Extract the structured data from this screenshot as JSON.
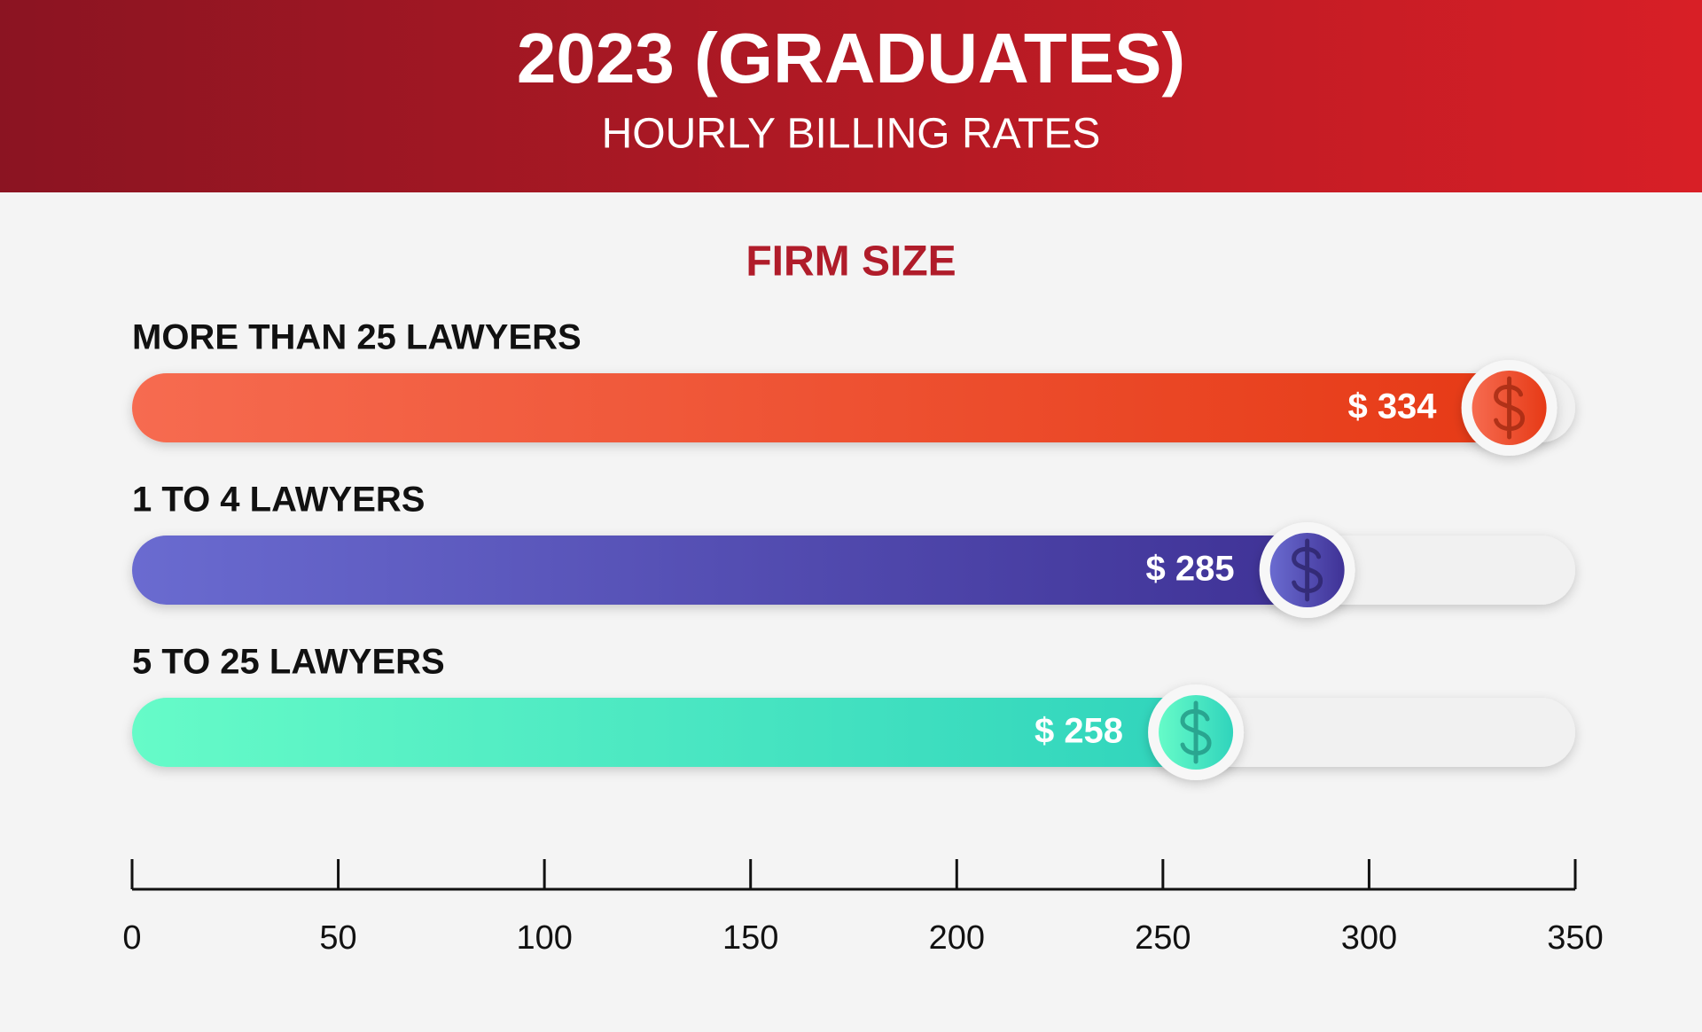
{
  "chart_data": {
    "type": "bar",
    "title": "2023 (GRADUATES)",
    "subtitle": "HOURLY BILLING RATES",
    "heading": "FIRM SIZE",
    "categories": [
      "MORE THAN 25 LAWYERS",
      "1 TO 4 LAWYERS",
      "5 TO 25 LAWYERS"
    ],
    "values": [
      334,
      285,
      258
    ],
    "value_labels": [
      "$ 334",
      "$ 285",
      "$ 258"
    ],
    "colors": [
      "#e63a16",
      "#3f3296",
      "#30d4bc"
    ],
    "colors_light": [
      "#f66b50",
      "#6a6bd0",
      "#66fbc8"
    ],
    "xlim": [
      0,
      350
    ],
    "xticks": [
      0,
      50,
      100,
      150,
      200,
      250,
      300,
      350
    ]
  }
}
